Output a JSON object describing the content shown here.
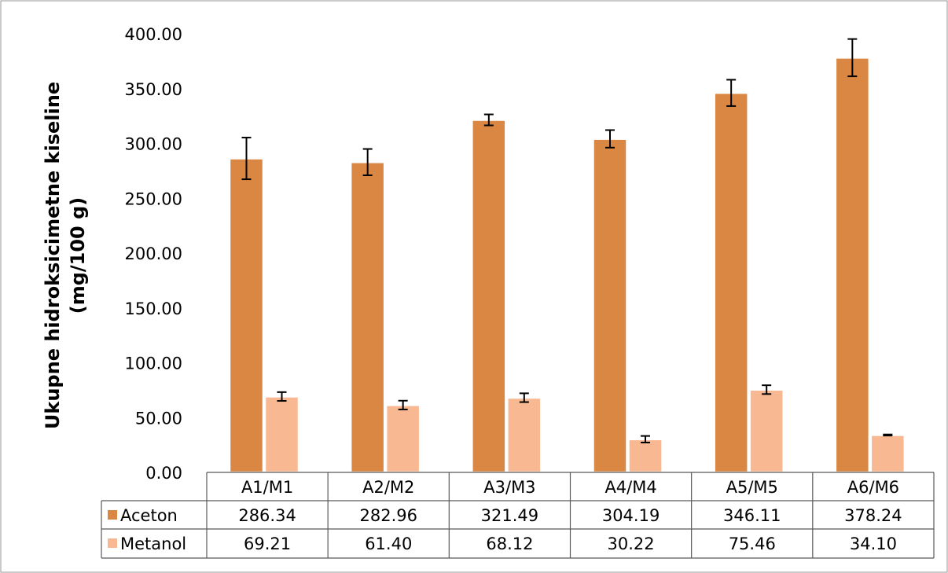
{
  "chart_data": {
    "type": "bar",
    "title": "",
    "ylabel_lines": [
      "Ukupne hidroksicimetne kiseline",
      "(mg/100 g)"
    ],
    "xlabel": "",
    "ylim": [
      0,
      400
    ],
    "y_ticks": [
      "0.00",
      "50.00",
      "100.00",
      "150.00",
      "200.00",
      "250.00",
      "300.00",
      "350.00",
      "400.00"
    ],
    "categories": [
      "A1/M1",
      "A2/M2",
      "A3/M3",
      "A4/M4",
      "A5/M5",
      "A6/M6"
    ],
    "series": [
      {
        "name": "Aceton",
        "color": "#d98743",
        "values": [
          286.34,
          282.96,
          321.49,
          304.19,
          346.11,
          378.24
        ],
        "labels": [
          "286.34",
          "282.96",
          "321.49",
          "304.19",
          "346.11",
          "378.24"
        ],
        "error": [
          19,
          12,
          5,
          8,
          12,
          17
        ]
      },
      {
        "name": "Metanol",
        "color": "#f7b892",
        "values": [
          69.21,
          61.4,
          68.12,
          30.22,
          75.46,
          34.1
        ],
        "labels": [
          "69.21",
          "61.40",
          "68.12",
          "30.22",
          "75.46",
          "34.10"
        ],
        "error": [
          4,
          4,
          4,
          3,
          4,
          0.5
        ]
      }
    ],
    "data_table": true,
    "grid": false,
    "legend": "data-table-left"
  }
}
